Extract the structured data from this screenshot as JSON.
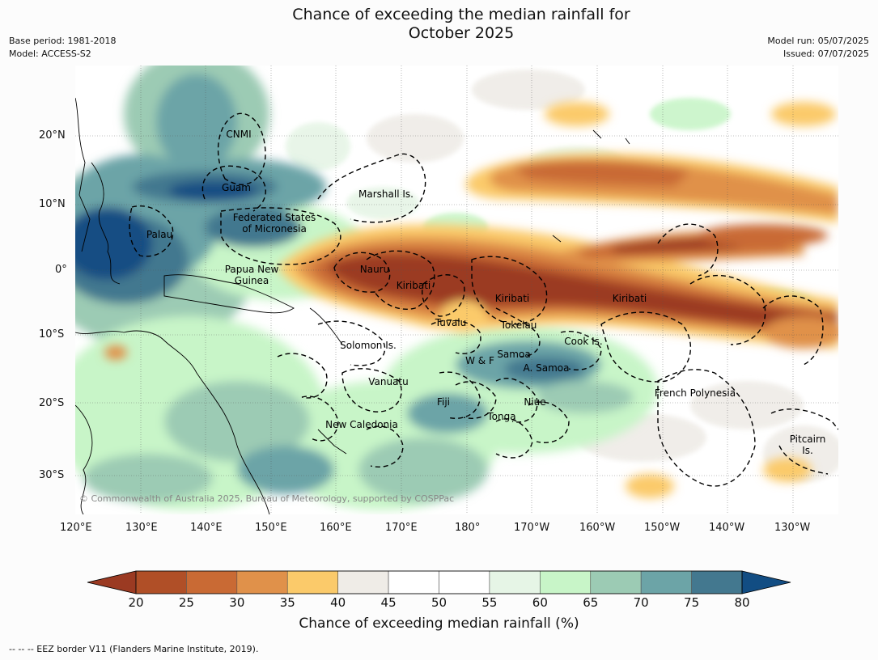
{
  "title_line1": "Chance of exceeding the median rainfall for",
  "title_line2": "October 2025",
  "base_period": "Base period: 1981-2018",
  "model": "Model: ACCESS-S2",
  "model_run": "Model run: 05/07/2025",
  "issued": "Issued: 07/07/2025",
  "copyright": "© Commonwealth of Australia 2025, Bureau of Meteorology, supported by COSPPac",
  "lon_ticks": [
    "120°E",
    "130°E",
    "140°E",
    "150°E",
    "160°E",
    "170°E",
    "180°",
    "170°W",
    "160°W",
    "150°W",
    "140°W",
    "130°W"
  ],
  "lat_ticks": [
    "20°N",
    "10°N",
    "0°",
    "10°S",
    "20°S",
    "30°S"
  ],
  "regions": [
    "CNMI",
    "Guam",
    "Marshall Is.",
    "Federated States",
    "of Micronesia",
    "Palau",
    "Papua New",
    "Guinea",
    "Nauru",
    "Kiribati",
    "Kiribati",
    "Kiribati",
    "Tuvalu",
    "Tokelau",
    "Solomon Is.",
    "Cook Is.",
    "W & F",
    "Samoa",
    "A. Samoa",
    "Vanuatu",
    "Fiji",
    "Niue",
    "Tonga",
    "French Polynesia",
    "New Caledonia",
    "Pitcairn",
    "Is."
  ],
  "colorbar": {
    "ticks": [
      "20",
      "25",
      "30",
      "35",
      "40",
      "45",
      "50",
      "55",
      "60",
      "65",
      "70",
      "75",
      "80"
    ],
    "colors": [
      "#9b3a22",
      "#b04f27",
      "#c96a34",
      "#e0914a",
      "#fbca6a",
      "#efece7",
      "#ffffff",
      "#ffffff",
      "#e6f5e6",
      "#c8f5c8",
      "#9ccbb4",
      "#6ca4a7",
      "#43788f",
      "#124d83"
    ],
    "label": "Chance of exceeding median rainfall (%)"
  },
  "footnote": "--  --  -- EEZ border V11 (Flanders Marine Institute, 2019)."
}
